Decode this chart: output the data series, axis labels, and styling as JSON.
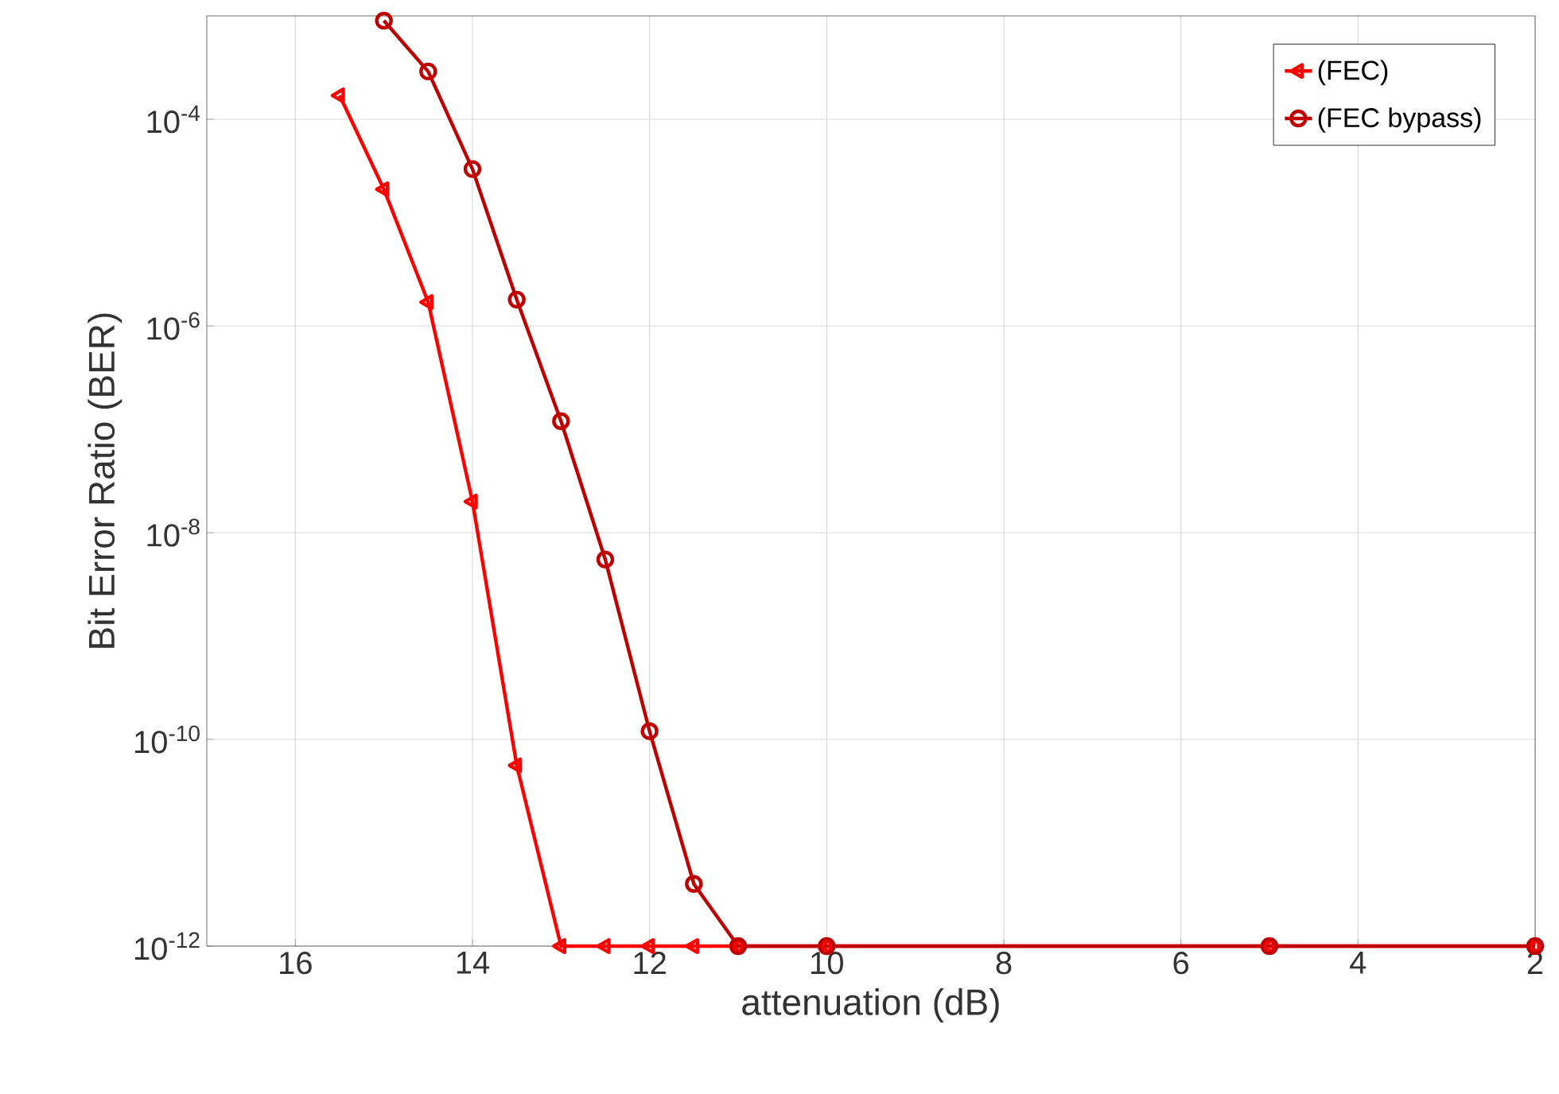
{
  "chart_data": {
    "type": "line",
    "xlabel": "attenuation (dB)",
    "ylabel": "Bit Error Ratio (BER)",
    "log": "y",
    "grid": true,
    "legend": "top right",
    "line_style": "solid",
    "xlim": [
      17,
      2
    ],
    "ylim": [
      1e-12,
      0.001
    ],
    "xticks": [
      16,
      14,
      12,
      10,
      8,
      6,
      4,
      2
    ],
    "yticks": [
      {
        "value": 1e-12,
        "label": "10$^{-12}$"
      },
      {
        "value": 1e-10,
        "label": "10$^{-10}$"
      },
      {
        "value": 1e-08,
        "label": "10$^{-8}$"
      },
      {
        "value": 1e-06,
        "label": "10$^{-6}$"
      },
      {
        "value": 0.0001,
        "label": "10$^{-4}$"
      }
    ],
    "series": [
      {
        "name": "(FEC)",
        "color": "#ff0000",
        "marker": "triangle",
        "x": [
          15.5,
          15,
          14.5,
          14,
          13.5,
          13,
          12.5,
          12,
          11.5,
          11,
          10,
          5,
          2
        ],
        "values": [
          0.00017,
          2.1e-05,
          1.7e-06,
          2e-08,
          5.6e-11,
          1e-12,
          1e-12,
          1e-12,
          1e-12,
          1e-12,
          1e-12,
          1e-12,
          1e-12
        ]
      },
      {
        "name": "(FEC bypass)",
        "color": "#c00000",
        "marker": "circle",
        "x": [
          15,
          14.5,
          14,
          13.5,
          13,
          12.5,
          12,
          11.5,
          11,
          10,
          5,
          2
        ],
        "values": [
          0.0009,
          0.00029,
          3.3e-05,
          1.8e-06,
          1.2e-07,
          5.5e-09,
          1.2e-10,
          4e-12,
          1e-12,
          1e-12,
          1e-12,
          1e-12
        ]
      }
    ]
  }
}
